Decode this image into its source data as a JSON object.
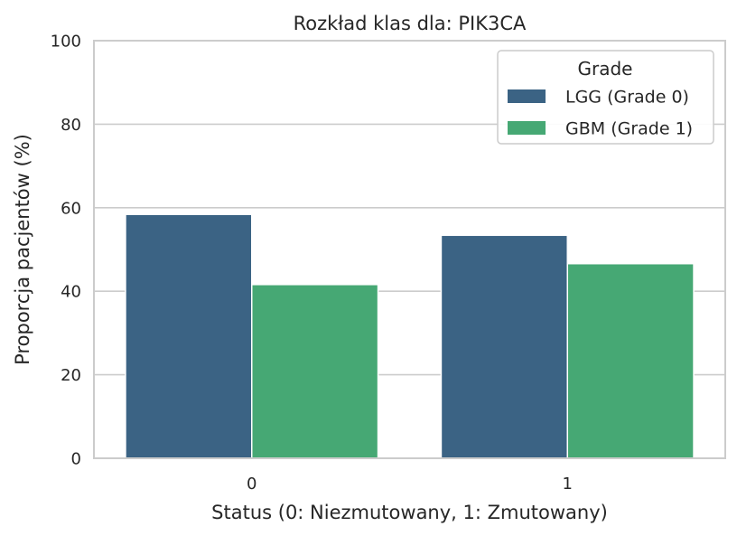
{
  "chart_data": {
    "type": "bar",
    "title": "Rozkład klas dla: PIK3CA",
    "xlabel": "Status (0: Niezmutowany, 1: Zmutowany)",
    "ylabel": "Proporcja pacjentów (%)",
    "categories": [
      "0",
      "1"
    ],
    "series": [
      {
        "name": "LGG (Grade 0)",
        "values": [
          58.4,
          53.4
        ],
        "color": "#3b6384"
      },
      {
        "name": "GBM (Grade 1)",
        "values": [
          41.6,
          46.6
        ],
        "color": "#46a874"
      }
    ],
    "ylim": [
      0,
      100
    ],
    "yticks": [
      0,
      20,
      40,
      60,
      80,
      100
    ],
    "grid": true,
    "legend": {
      "title": "Grade",
      "placement": "top-right"
    }
  },
  "colors": {
    "axes": "#cccccc",
    "grid": "#cccccc",
    "text": "#262626",
    "background": "#ffffff"
  }
}
